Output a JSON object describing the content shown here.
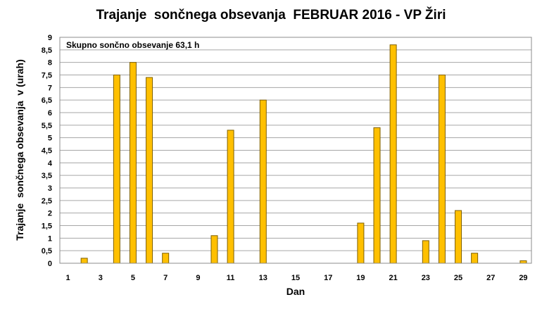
{
  "chart_data": {
    "type": "bar",
    "title": "Trajanje  sončnega obsevanja  FEBRUAR 2016 - VP Žiri",
    "xlabel": "Dan",
    "ylabel": "Trajanje  sončnega obsevanja  v (urah)",
    "annotation": "Skupno sončno obsevanje 63,1 h",
    "categories": [
      1,
      2,
      3,
      4,
      5,
      6,
      7,
      8,
      9,
      10,
      11,
      12,
      13,
      14,
      15,
      16,
      17,
      18,
      19,
      20,
      21,
      22,
      23,
      24,
      25,
      26,
      27,
      28,
      29
    ],
    "values": [
      0,
      0.2,
      0,
      7.5,
      8.0,
      7.4,
      0.4,
      0,
      0,
      1.1,
      5.3,
      0,
      6.5,
      0,
      0,
      0,
      0,
      0,
      1.6,
      5.4,
      8.7,
      0,
      0.9,
      7.5,
      2.1,
      0.4,
      0,
      0,
      0.1
    ],
    "x_tick_labels": [
      "1",
      "3",
      "5",
      "7",
      "9",
      "11",
      "13",
      "15",
      "17",
      "19",
      "21",
      "23",
      "25",
      "27",
      "29"
    ],
    "y_tick_labels": [
      "0",
      "0,5",
      "1",
      "1,5",
      "2",
      "2,5",
      "3",
      "3,5",
      "4",
      "4,5",
      "5",
      "5,5",
      "6",
      "6,5",
      "7",
      "7,5",
      "8",
      "8,5",
      "9"
    ],
    "ylim": [
      0,
      9
    ],
    "grid": true,
    "bar_color": "#ffc000"
  }
}
